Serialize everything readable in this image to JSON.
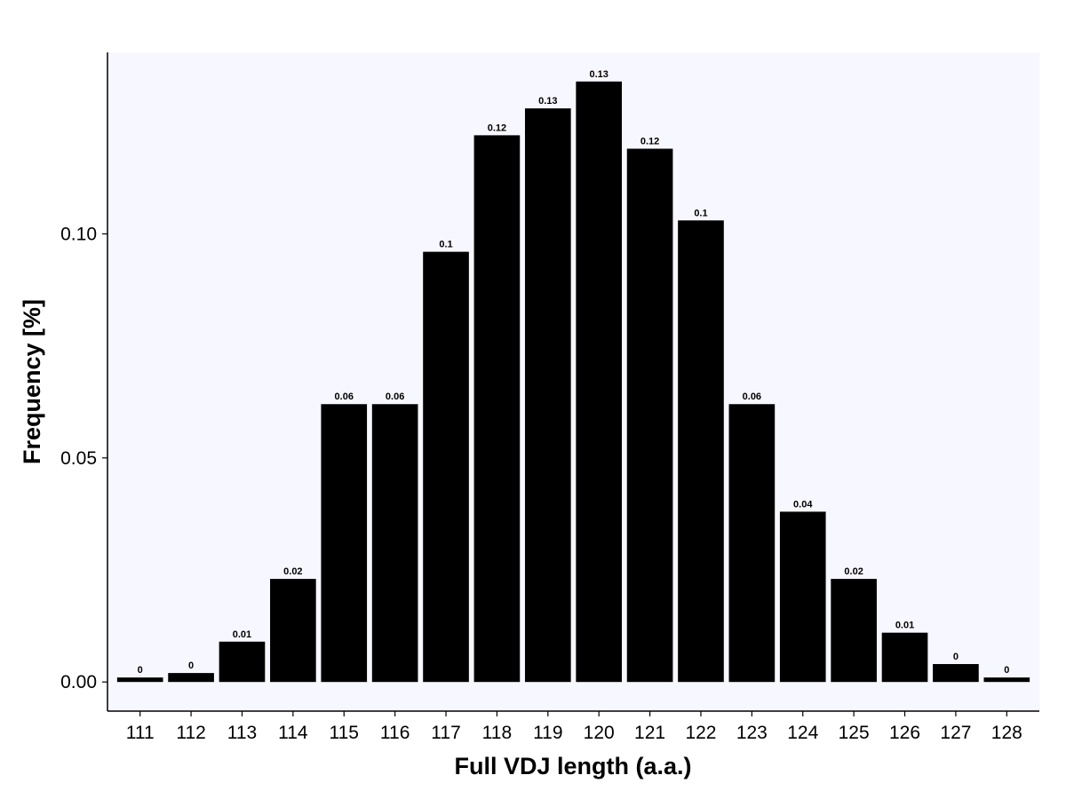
{
  "chart_data": {
    "type": "bar",
    "title": "",
    "xlabel": "Full VDJ length (a.a.)",
    "ylabel": "Frequency [%]",
    "categories": [
      "111",
      "112",
      "113",
      "114",
      "115",
      "116",
      "117",
      "118",
      "119",
      "120",
      "121",
      "122",
      "123",
      "124",
      "125",
      "126",
      "127",
      "128"
    ],
    "values": [
      0.001,
      0.002,
      0.009,
      0.023,
      0.062,
      0.062,
      0.096,
      0.122,
      0.128,
      0.134,
      0.119,
      0.103,
      0.062,
      0.038,
      0.023,
      0.011,
      0.004,
      0.001
    ],
    "value_labels": [
      "0",
      "0",
      "0.01",
      "0.02",
      "0.06",
      "0.06",
      "0.1",
      "0.12",
      "0.13",
      "0.13",
      "0.12",
      "0.1",
      "0.06",
      "0.04",
      "0.02",
      "0.01",
      "0",
      "0"
    ],
    "yticks": [
      0.0,
      0.05,
      0.1
    ],
    "ytick_labels": [
      "0.00",
      "0.05",
      "0.10"
    ],
    "ylim": [
      -0.0065,
      0.1405
    ],
    "grid": false,
    "legend": "none",
    "colors": {
      "bar": "#000000",
      "panel_background": "#f7f7ff",
      "axis": "#000000"
    }
  }
}
